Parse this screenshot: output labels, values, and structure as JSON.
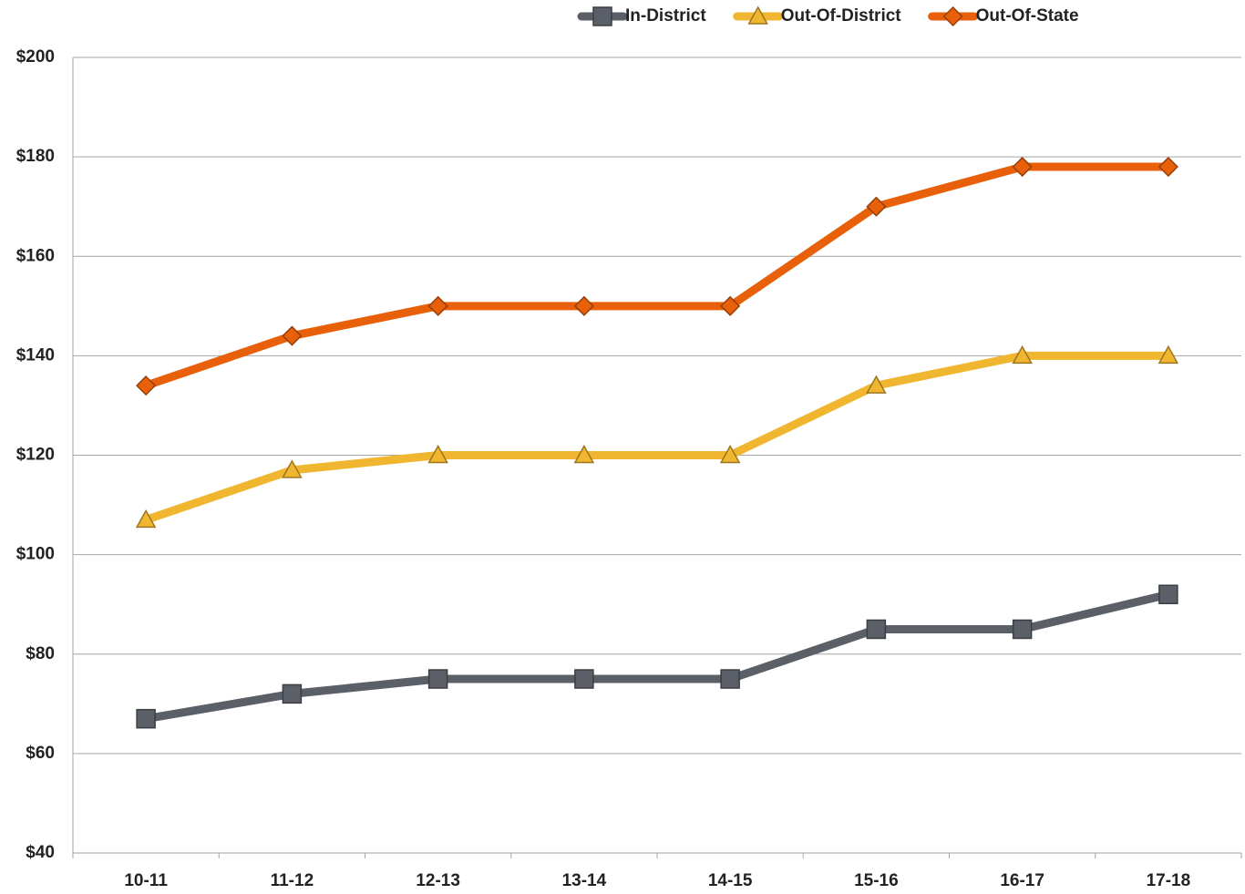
{
  "chart_data": {
    "type": "line",
    "categories": [
      "10-11",
      "11-12",
      "12-13",
      "13-14",
      "14-15",
      "15-16",
      "16-17",
      "17-18"
    ],
    "series": [
      {
        "name": "In-District",
        "color": "#5b5f67",
        "marker": "square",
        "values": [
          67,
          72,
          75,
          75,
          75,
          85,
          85,
          92
        ]
      },
      {
        "name": "Out-Of-District",
        "color": "#f0b630",
        "marker": "triangle",
        "values": [
          107,
          117,
          120,
          120,
          120,
          134,
          140,
          140
        ]
      },
      {
        "name": "Out-Of-State",
        "color": "#e8600a",
        "marker": "diamond",
        "values": [
          134,
          144,
          150,
          150,
          150,
          170,
          178,
          178
        ]
      }
    ],
    "ylim": [
      40,
      200
    ],
    "yticks": [
      {
        "value": 40,
        "label": "$40"
      },
      {
        "value": 60,
        "label": "$60"
      },
      {
        "value": 80,
        "label": "$80"
      },
      {
        "value": 100,
        "label": "$100"
      },
      {
        "value": 120,
        "label": "$120"
      },
      {
        "value": 140,
        "label": "$140"
      },
      {
        "value": 160,
        "label": "$160"
      },
      {
        "value": 180,
        "label": "$180"
      },
      {
        "value": 200,
        "label": "$200"
      }
    ],
    "grid": true,
    "legend": "top"
  }
}
